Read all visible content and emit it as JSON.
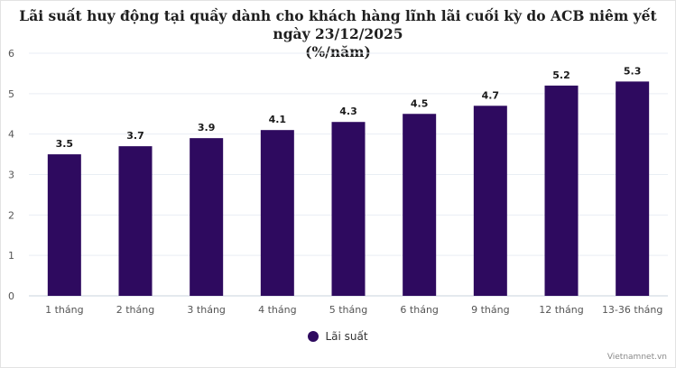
{
  "chart_data": {
    "type": "bar",
    "title": "Lãi suất huy động tại quầy dành cho khách hàng lĩnh lãi cuối kỳ do ACB niêm yết ngày 23/12/2025",
    "subtitle": "(%/năm)",
    "categories": [
      "1 tháng",
      "2 tháng",
      "3 tháng",
      "4 tháng",
      "5 tháng",
      "6 tháng",
      "9 tháng",
      "12 tháng",
      "13-36 tháng"
    ],
    "series": [
      {
        "name": "Lãi suất",
        "values": [
          3.5,
          3.7,
          3.9,
          4.1,
          4.3,
          4.5,
          4.7,
          5.2,
          5.3
        ]
      }
    ],
    "data_labels": [
      "3.5",
      "3.7",
      "3.9",
      "4.1",
      "4.3",
      "4.5",
      "4.7",
      "5.2",
      "5.3"
    ],
    "y_ticks": [
      "0",
      "1",
      "2",
      "3",
      "4",
      "5",
      "6"
    ],
    "ylim": [
      0,
      6
    ],
    "xlabel": "",
    "ylabel": "",
    "grid": true,
    "legend_position": "bottom",
    "bar_color": "#2e0a5f"
  },
  "source_credit": "Vietnamnet.vn"
}
